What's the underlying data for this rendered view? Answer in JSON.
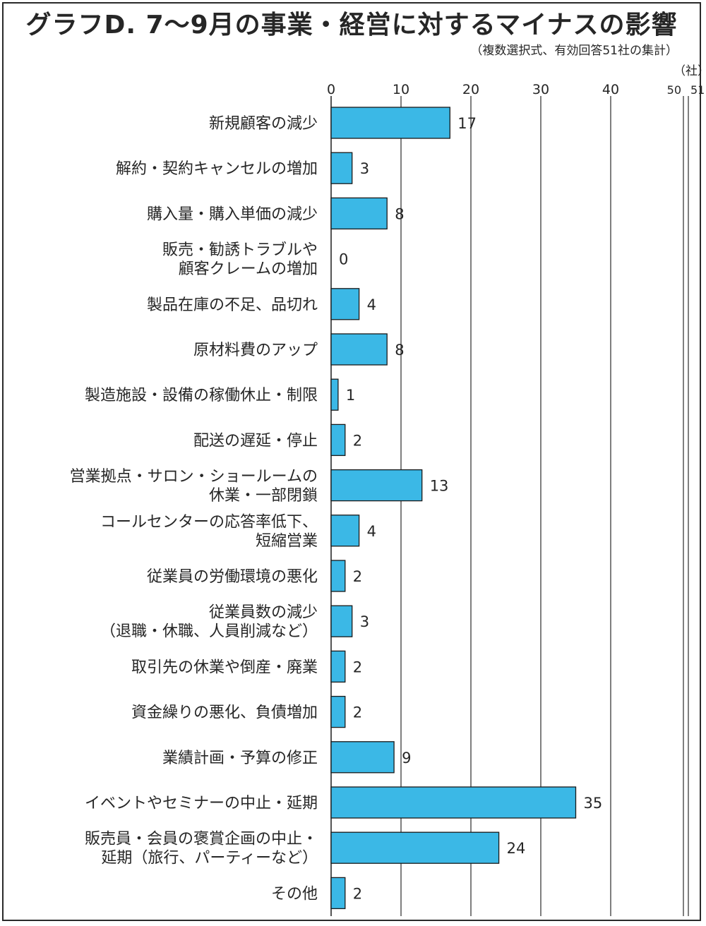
{
  "chart_data": {
    "type": "bar",
    "orientation": "horizontal",
    "title": "グラフD. 7～9月の事業・経営に対するマイナスの影響",
    "subtitle": "（複数選択式、有効回答51社の集計）",
    "unit": "（社）",
    "categories": [
      "新規顧客の減少",
      "解約・契約キャンセルの増加",
      "購入量・購入単価の減少",
      "販売・勧誘トラブルや\n顧客クレームの増加",
      "製品在庫の不足、品切れ",
      "原材料費のアップ",
      "製造施設・設備の稼働休止・制限",
      "配送の遅延・停止",
      "営業拠点・サロン・ショールームの\n休業・一部閉鎖",
      "コールセンターの応答率低下、\n短縮営業",
      "従業員の労働環境の悪化",
      "従業員数の減少\n（退職・休職、人員削減など）",
      "取引先の休業や倒産・廃業",
      "資金繰りの悪化、負債増加",
      "業績計画・予算の修正",
      "イベントやセミナーの中止・延期",
      "販売員・会員の褒賞企画の中止・\n延期（旅行、パーティーなど）",
      "その他"
    ],
    "values": [
      17,
      3,
      8,
      0,
      4,
      8,
      1,
      2,
      13,
      4,
      2,
      3,
      2,
      2,
      9,
      35,
      24,
      2
    ],
    "xticks": [
      0,
      10,
      20,
      30,
      40,
      50,
      51
    ],
    "xtick_labels": [
      "0",
      "10",
      "20",
      "30",
      "40",
      "50",
      "51"
    ],
    "xlim": [
      0,
      51
    ],
    "axis_break": [
      40,
      50
    ],
    "grid": true,
    "bar_color": "#3bb8e6",
    "bar_edge_color": "#1a1a1a",
    "text_color": "#262626"
  }
}
